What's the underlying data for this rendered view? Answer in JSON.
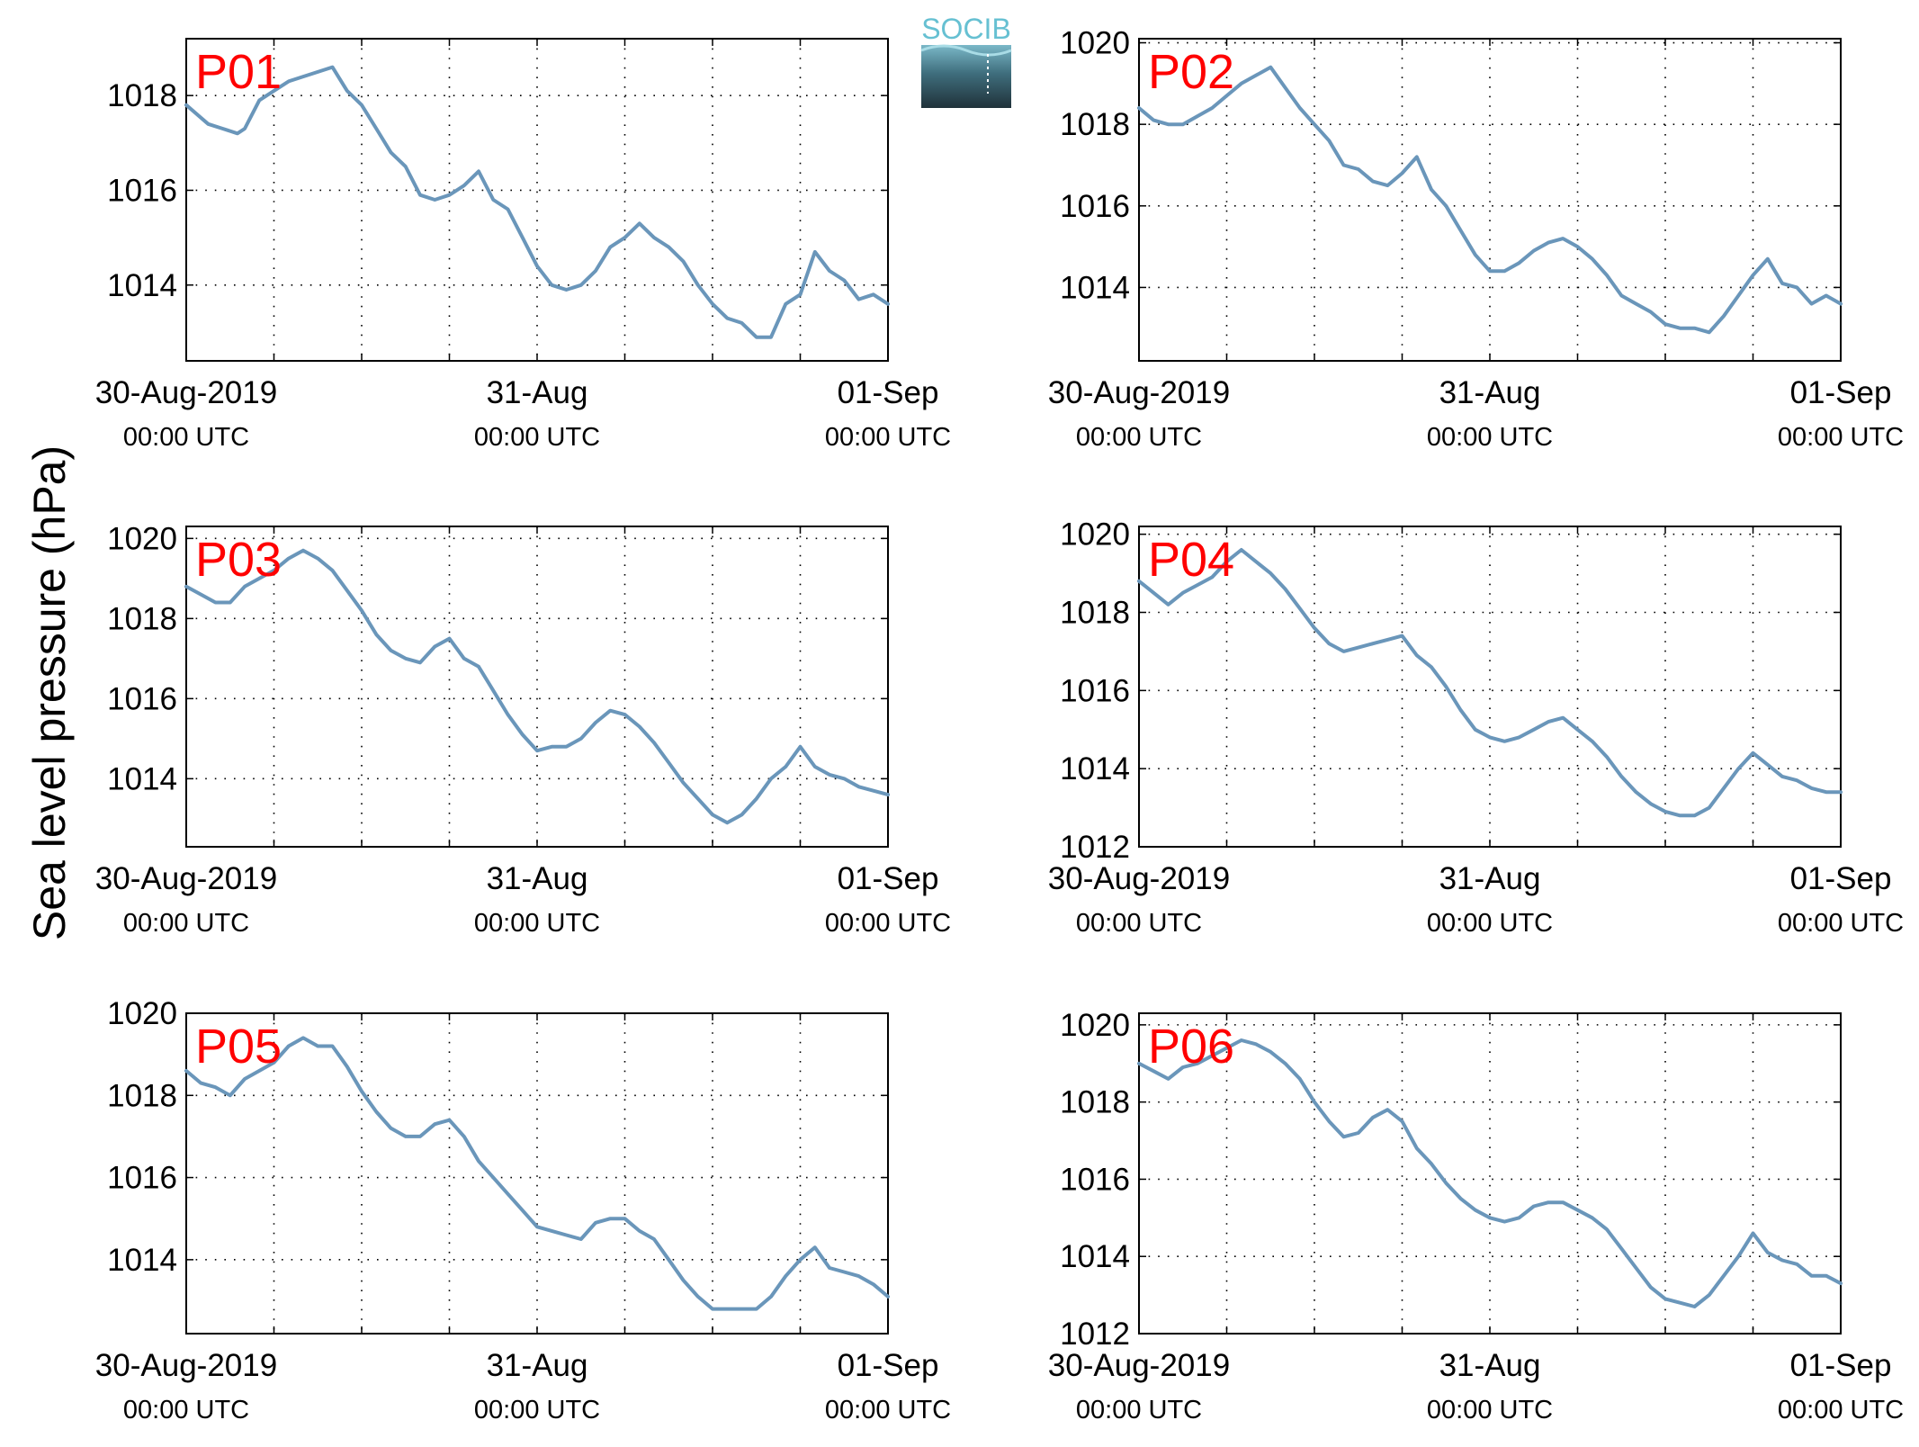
{
  "figure": {
    "ylabel": "Sea level pressure (hPa)",
    "logo_text": "SOCIB",
    "line_color": "#6a96ba",
    "station_label_color": "#ff0000"
  },
  "chart_data": [
    {
      "type": "line",
      "station": "P01",
      "x_tick_labels": [
        [
          "30-Aug-2019",
          "00:00 UTC"
        ],
        [
          "31-Aug",
          "00:00 UTC"
        ],
        [
          "01-Sep",
          "00:00 UTC"
        ]
      ],
      "xlim": [
        0,
        48
      ],
      "x_major_ticks": [
        0,
        24,
        48
      ],
      "x_grid_step": 6,
      "yticks": [
        1014,
        1016,
        1018
      ],
      "ylim": [
        1012.4,
        1019.2
      ],
      "grid": true,
      "series": [
        {
          "x": [
            0,
            1.5,
            2.5,
            3.5,
            4,
            5,
            6,
            7,
            8,
            9,
            10,
            11,
            12,
            13,
            14,
            15,
            16,
            17,
            18,
            19,
            20,
            21,
            22,
            23,
            24,
            25,
            26,
            27,
            28,
            29,
            30,
            31,
            32,
            33,
            34,
            35,
            36,
            37,
            38,
            39,
            40,
            41,
            42,
            43,
            44,
            45,
            46,
            47,
            48
          ],
          "y": [
            1017.8,
            1017.4,
            1017.3,
            1017.2,
            1017.3,
            1017.9,
            1018.1,
            1018.3,
            1018.4,
            1018.5,
            1018.6,
            1018.1,
            1017.8,
            1017.3,
            1016.8,
            1016.5,
            1015.9,
            1015.8,
            1015.9,
            1016.1,
            1016.4,
            1015.8,
            1015.6,
            1015.0,
            1014.4,
            1014.0,
            1013.9,
            1014.0,
            1014.3,
            1014.8,
            1015.0,
            1015.3,
            1015.0,
            1014.8,
            1014.5,
            1014.0,
            1013.6,
            1013.3,
            1013.2,
            1012.9,
            1012.9,
            1013.6,
            1013.8,
            1014.7,
            1014.3,
            1014.1,
            1013.7,
            1013.8,
            1013.6
          ]
        }
      ]
    },
    {
      "type": "line",
      "station": "P02",
      "x_tick_labels": [
        [
          "30-Aug-2019",
          "00:00 UTC"
        ],
        [
          "31-Aug",
          "00:00 UTC"
        ],
        [
          "01-Sep",
          "00:00 UTC"
        ]
      ],
      "xlim": [
        0,
        48
      ],
      "x_major_ticks": [
        0,
        24,
        48
      ],
      "x_grid_step": 6,
      "yticks": [
        1014,
        1016,
        1018,
        1020
      ],
      "ylim": [
        1012.2,
        1020.1
      ],
      "grid": true,
      "series": [
        {
          "x": [
            0,
            1,
            2,
            3,
            4,
            5,
            6,
            7,
            8,
            9,
            10,
            11,
            12,
            13,
            14,
            15,
            16,
            17,
            18,
            19,
            20,
            21,
            22,
            23,
            24,
            25,
            26,
            27,
            28,
            29,
            30,
            31,
            32,
            33,
            34,
            35,
            36,
            37,
            38,
            39,
            40,
            41,
            42,
            43,
            44,
            45,
            46,
            47,
            48
          ],
          "y": [
            1018.4,
            1018.1,
            1018.0,
            1018.0,
            1018.2,
            1018.4,
            1018.7,
            1019.0,
            1019.2,
            1019.4,
            1018.9,
            1018.4,
            1018.0,
            1017.6,
            1017.0,
            1016.9,
            1016.6,
            1016.5,
            1016.8,
            1017.2,
            1016.4,
            1016.0,
            1015.4,
            1014.8,
            1014.4,
            1014.4,
            1014.6,
            1014.9,
            1015.1,
            1015.2,
            1015.0,
            1014.7,
            1014.3,
            1013.8,
            1013.6,
            1013.4,
            1013.1,
            1013.0,
            1013.0,
            1012.9,
            1013.3,
            1013.8,
            1014.3,
            1014.7,
            1014.1,
            1014.0,
            1013.6,
            1013.8,
            1013.6
          ]
        }
      ]
    },
    {
      "type": "line",
      "station": "P03",
      "x_tick_labels": [
        [
          "30-Aug-2019",
          "00:00 UTC"
        ],
        [
          "31-Aug",
          "00:00 UTC"
        ],
        [
          "01-Sep",
          "00:00 UTC"
        ]
      ],
      "xlim": [
        0,
        48
      ],
      "x_major_ticks": [
        0,
        24,
        48
      ],
      "x_grid_step": 6,
      "yticks": [
        1014,
        1016,
        1018,
        1020
      ],
      "ylim": [
        1012.3,
        1020.3
      ],
      "grid": true,
      "series": [
        {
          "x": [
            0,
            1,
            2,
            3,
            4,
            5,
            6,
            7,
            8,
            9,
            10,
            11,
            12,
            13,
            14,
            15,
            16,
            17,
            18,
            19,
            20,
            21,
            22,
            23,
            24,
            25,
            26,
            27,
            28,
            29,
            30,
            31,
            32,
            33,
            34,
            35,
            36,
            37,
            38,
            39,
            40,
            41,
            42,
            43,
            44,
            45,
            46,
            47,
            48
          ],
          "y": [
            1018.8,
            1018.6,
            1018.4,
            1018.4,
            1018.8,
            1019.0,
            1019.2,
            1019.5,
            1019.7,
            1019.5,
            1019.2,
            1018.7,
            1018.2,
            1017.6,
            1017.2,
            1017.0,
            1016.9,
            1017.3,
            1017.5,
            1017.0,
            1016.8,
            1016.2,
            1015.6,
            1015.1,
            1014.7,
            1014.8,
            1014.8,
            1015.0,
            1015.4,
            1015.7,
            1015.6,
            1015.3,
            1014.9,
            1014.4,
            1013.9,
            1013.5,
            1013.1,
            1012.9,
            1013.1,
            1013.5,
            1014.0,
            1014.3,
            1014.8,
            1014.3,
            1014.1,
            1014.0,
            1013.8,
            1013.7,
            1013.6
          ]
        }
      ]
    },
    {
      "type": "line",
      "station": "P04",
      "x_tick_labels": [
        [
          "30-Aug-2019",
          "00:00 UTC"
        ],
        [
          "31-Aug",
          "00:00 UTC"
        ],
        [
          "01-Sep",
          "00:00 UTC"
        ]
      ],
      "xlim": [
        0,
        48
      ],
      "x_major_ticks": [
        0,
        24,
        48
      ],
      "x_grid_step": 6,
      "yticks": [
        1012,
        1014,
        1016,
        1018,
        1020
      ],
      "ylim": [
        1012,
        1020.2
      ],
      "grid": true,
      "series": [
        {
          "x": [
            0,
            1,
            2,
            3,
            4,
            5,
            6,
            7,
            8,
            9,
            10,
            11,
            12,
            13,
            14,
            15,
            16,
            17,
            18,
            19,
            20,
            21,
            22,
            23,
            24,
            25,
            26,
            27,
            28,
            29,
            30,
            31,
            32,
            33,
            34,
            35,
            36,
            37,
            38,
            39,
            40,
            41,
            42,
            43,
            44,
            45,
            46,
            47,
            48
          ],
          "y": [
            1018.8,
            1018.5,
            1018.2,
            1018.5,
            1018.7,
            1018.9,
            1019.3,
            1019.6,
            1019.3,
            1019.0,
            1018.6,
            1018.1,
            1017.6,
            1017.2,
            1017.0,
            1017.1,
            1017.2,
            1017.3,
            1017.4,
            1016.9,
            1016.6,
            1016.1,
            1015.5,
            1015.0,
            1014.8,
            1014.7,
            1014.8,
            1015.0,
            1015.2,
            1015.3,
            1015.0,
            1014.7,
            1014.3,
            1013.8,
            1013.4,
            1013.1,
            1012.9,
            1012.8,
            1012.8,
            1013.0,
            1013.5,
            1014.0,
            1014.4,
            1014.1,
            1013.8,
            1013.7,
            1013.5,
            1013.4,
            1013.4
          ]
        }
      ]
    },
    {
      "type": "line",
      "station": "P05",
      "x_tick_labels": [
        [
          "30-Aug-2019",
          "00:00 UTC"
        ],
        [
          "31-Aug",
          "00:00 UTC"
        ],
        [
          "01-Sep",
          "00:00 UTC"
        ]
      ],
      "xlim": [
        0,
        48
      ],
      "x_major_ticks": [
        0,
        24,
        48
      ],
      "x_grid_step": 6,
      "yticks": [
        1014,
        1016,
        1018,
        1020
      ],
      "ylim": [
        1012.2,
        1020.0
      ],
      "grid": true,
      "series": [
        {
          "x": [
            0,
            1,
            2,
            3,
            4,
            5,
            6,
            7,
            8,
            9,
            10,
            11,
            12,
            13,
            14,
            15,
            16,
            17,
            18,
            19,
            20,
            21,
            22,
            23,
            24,
            25,
            26,
            27,
            28,
            29,
            30,
            31,
            32,
            33,
            34,
            35,
            36,
            37,
            38,
            39,
            40,
            41,
            42,
            43,
            44,
            45,
            46,
            47,
            48
          ],
          "y": [
            1018.6,
            1018.3,
            1018.2,
            1018.0,
            1018.4,
            1018.6,
            1018.8,
            1019.2,
            1019.4,
            1019.2,
            1019.2,
            1018.7,
            1018.1,
            1017.6,
            1017.2,
            1017.0,
            1017.0,
            1017.3,
            1017.4,
            1017.0,
            1016.4,
            1016.0,
            1015.6,
            1015.2,
            1014.8,
            1014.7,
            1014.6,
            1014.5,
            1014.9,
            1015.0,
            1015.0,
            1014.7,
            1014.5,
            1014.0,
            1013.5,
            1013.1,
            1012.8,
            1012.8,
            1012.8,
            1012.8,
            1013.1,
            1013.6,
            1014.0,
            1014.3,
            1013.8,
            1013.7,
            1013.6,
            1013.4,
            1013.1
          ]
        }
      ]
    },
    {
      "type": "line",
      "station": "P06",
      "x_tick_labels": [
        [
          "30-Aug-2019",
          "00:00 UTC"
        ],
        [
          "31-Aug",
          "00:00 UTC"
        ],
        [
          "01-Sep",
          "00:00 UTC"
        ]
      ],
      "xlim": [
        0,
        48
      ],
      "x_major_ticks": [
        0,
        24,
        48
      ],
      "x_grid_step": 6,
      "yticks": [
        1012,
        1014,
        1016,
        1018,
        1020
      ],
      "ylim": [
        1012,
        1020.3
      ],
      "grid": true,
      "series": [
        {
          "x": [
            0,
            1,
            2,
            3,
            4,
            5,
            6,
            7,
            8,
            9,
            10,
            11,
            12,
            13,
            14,
            15,
            16,
            17,
            18,
            19,
            20,
            21,
            22,
            23,
            24,
            25,
            26,
            27,
            28,
            29,
            30,
            31,
            32,
            33,
            34,
            35,
            36,
            37,
            38,
            39,
            40,
            41,
            42,
            43,
            44,
            45,
            46,
            47,
            48
          ],
          "y": [
            1019.0,
            1018.8,
            1018.6,
            1018.9,
            1019.0,
            1019.2,
            1019.4,
            1019.6,
            1019.5,
            1019.3,
            1019.0,
            1018.6,
            1018.0,
            1017.5,
            1017.1,
            1017.2,
            1017.6,
            1017.8,
            1017.5,
            1016.8,
            1016.4,
            1015.9,
            1015.5,
            1015.2,
            1015.0,
            1014.9,
            1015.0,
            1015.3,
            1015.4,
            1015.4,
            1015.2,
            1015.0,
            1014.7,
            1014.2,
            1013.7,
            1013.2,
            1012.9,
            1012.8,
            1012.7,
            1013.0,
            1013.5,
            1014.0,
            1014.6,
            1014.1,
            1013.9,
            1013.8,
            1013.5,
            1013.5,
            1013.3
          ]
        }
      ]
    }
  ]
}
